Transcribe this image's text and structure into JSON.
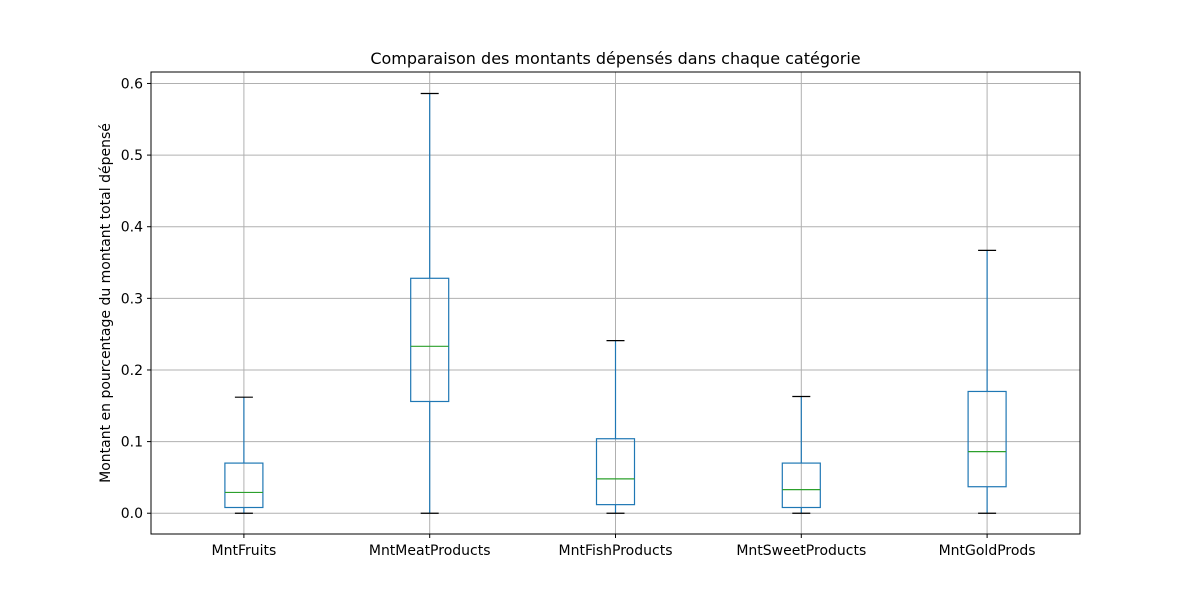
{
  "chart_data": {
    "type": "boxplot",
    "title": "Comparaison des montants dépensés dans chaque catégorie",
    "xlabel": "",
    "ylabel": "Montant en pourcentage du montant total dépensé",
    "ylim": [
      -0.029,
      0.616
    ],
    "yticks": [
      0.0,
      0.1,
      0.2,
      0.3,
      0.4,
      0.5,
      0.6
    ],
    "ytick_labels": [
      "0.0",
      "0.1",
      "0.2",
      "0.3",
      "0.4",
      "0.5",
      "0.6"
    ],
    "grid": true,
    "categories": [
      "MntFruits",
      "MntMeatProducts",
      "MntFishProducts",
      "MntSweetProducts",
      "MntGoldProds"
    ],
    "boxes": [
      {
        "whisker_low": 0.0,
        "q1": 0.008,
        "median": 0.029,
        "q3": 0.07,
        "whisker_high": 0.162
      },
      {
        "whisker_low": 0.0,
        "q1": 0.156,
        "median": 0.233,
        "q3": 0.328,
        "whisker_high": 0.586
      },
      {
        "whisker_low": 0.0,
        "q1": 0.012,
        "median": 0.048,
        "q3": 0.104,
        "whisker_high": 0.241
      },
      {
        "whisker_low": 0.0,
        "q1": 0.008,
        "median": 0.033,
        "q3": 0.07,
        "whisker_high": 0.163
      },
      {
        "whisker_low": 0.0,
        "q1": 0.037,
        "median": 0.086,
        "q3": 0.17,
        "whisker_high": 0.367
      }
    ],
    "colors": {
      "box": "#1f77b4",
      "median": "#2ca02c",
      "cap": "#000000",
      "grid": "#b0b0b0"
    }
  }
}
